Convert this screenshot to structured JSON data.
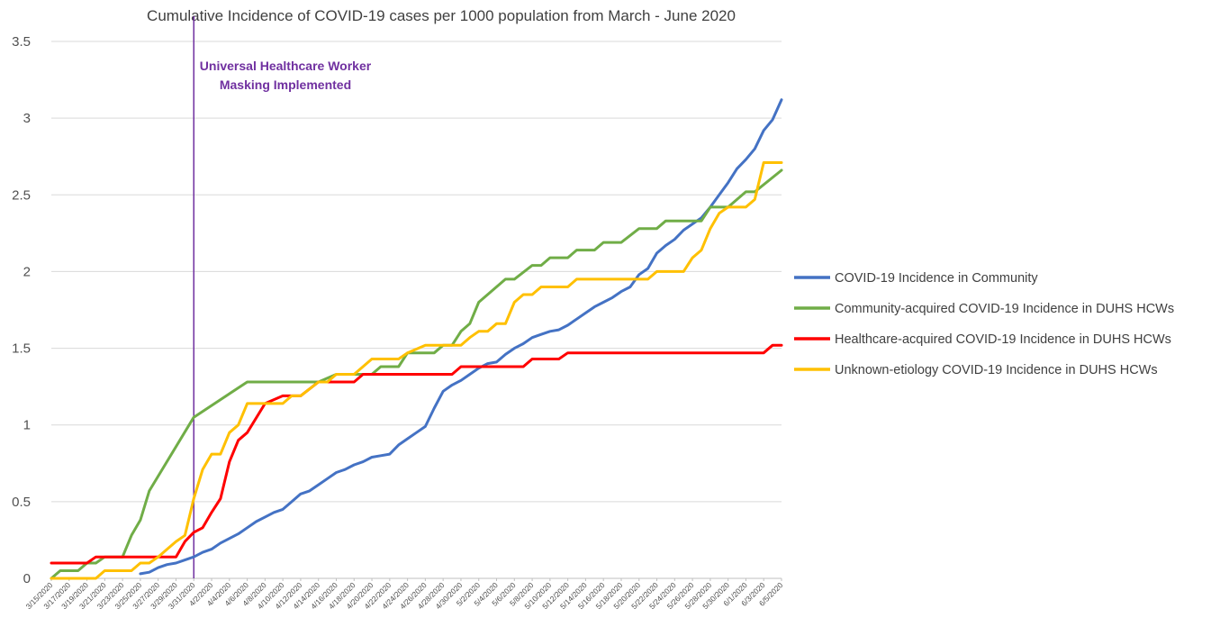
{
  "chart_data": {
    "type": "line",
    "title": "Cumulative Incidence of COVID-19 cases per 1000 population from March - June 2020",
    "xlabel": "",
    "ylabel": "",
    "ylim": [
      0,
      3.5
    ],
    "yticks": [
      "0",
      "0.5",
      "1",
      "1.5",
      "2",
      "2.5",
      "3",
      "3.5"
    ],
    "grid": "horizontal",
    "legend_position": "right",
    "x_start": "3/15/2020",
    "x_end": "6/5/2020",
    "x_tick_labels": [
      "3/15/2020",
      "3/17/2020",
      "3/19/2020",
      "3/21/2020",
      "3/23/2020",
      "3/25/2020",
      "3/27/2020",
      "3/29/2020",
      "3/31/2020",
      "4/2/2020",
      "4/4/2020",
      "4/6/2020",
      "4/8/2020",
      "4/10/2020",
      "4/12/2020",
      "4/14/2020",
      "4/16/2020",
      "4/18/2020",
      "4/20/2020",
      "4/22/2020",
      "4/24/2020",
      "4/26/2020",
      "4/28/2020",
      "4/30/2020",
      "5/2/2020",
      "5/4/2020",
      "5/6/2020",
      "5/8/2020",
      "5/10/2020",
      "5/12/2020",
      "5/14/2020",
      "5/16/2020",
      "5/18/2020",
      "5/20/2020",
      "5/22/2020",
      "5/24/2020",
      "5/26/2020",
      "5/28/2020",
      "5/30/2020",
      "6/1/2020",
      "6/3/2020",
      "6/5/2020"
    ],
    "annotation": {
      "date": "3/31/2020",
      "lines": [
        "Universal Healthcare Worker",
        "Masking Implemented"
      ],
      "color": "#7030a0"
    },
    "series": [
      {
        "name": "COVID-19 Incidence in Community",
        "color": "#4472c4",
        "points": [
          [
            "3/25/2020",
            0.03
          ],
          [
            "3/26/2020",
            0.04
          ],
          [
            "3/27/2020",
            0.07
          ],
          [
            "3/28/2020",
            0.09
          ],
          [
            "3/29/2020",
            0.1
          ],
          [
            "3/30/2020",
            0.12
          ],
          [
            "3/31/2020",
            0.14
          ],
          [
            "4/1/2020",
            0.17
          ],
          [
            "4/2/2020",
            0.19
          ],
          [
            "4/3/2020",
            0.23
          ],
          [
            "4/4/2020",
            0.26
          ],
          [
            "4/5/2020",
            0.29
          ],
          [
            "4/6/2020",
            0.33
          ],
          [
            "4/7/2020",
            0.37
          ],
          [
            "4/8/2020",
            0.4
          ],
          [
            "4/9/2020",
            0.43
          ],
          [
            "4/10/2020",
            0.45
          ],
          [
            "4/11/2020",
            0.5
          ],
          [
            "4/12/2020",
            0.55
          ],
          [
            "4/13/2020",
            0.57
          ],
          [
            "4/14/2020",
            0.61
          ],
          [
            "4/15/2020",
            0.65
          ],
          [
            "4/16/2020",
            0.69
          ],
          [
            "4/17/2020",
            0.71
          ],
          [
            "4/18/2020",
            0.74
          ],
          [
            "4/19/2020",
            0.76
          ],
          [
            "4/20/2020",
            0.79
          ],
          [
            "4/21/2020",
            0.8
          ],
          [
            "4/22/2020",
            0.81
          ],
          [
            "4/23/2020",
            0.87
          ],
          [
            "4/24/2020",
            0.91
          ],
          [
            "4/25/2020",
            0.95
          ],
          [
            "4/26/2020",
            0.99
          ],
          [
            "4/27/2020",
            1.11
          ],
          [
            "4/28/2020",
            1.22
          ],
          [
            "4/29/2020",
            1.26
          ],
          [
            "4/30/2020",
            1.29
          ],
          [
            "5/1/2020",
            1.33
          ],
          [
            "5/2/2020",
            1.37
          ],
          [
            "5/3/2020",
            1.4
          ],
          [
            "5/4/2020",
            1.41
          ],
          [
            "5/5/2020",
            1.46
          ],
          [
            "5/6/2020",
            1.5
          ],
          [
            "5/7/2020",
            1.53
          ],
          [
            "5/8/2020",
            1.57
          ],
          [
            "5/9/2020",
            1.59
          ],
          [
            "5/10/2020",
            1.61
          ],
          [
            "5/11/2020",
            1.62
          ],
          [
            "5/12/2020",
            1.65
          ],
          [
            "5/13/2020",
            1.69
          ],
          [
            "5/14/2020",
            1.73
          ],
          [
            "5/15/2020",
            1.77
          ],
          [
            "5/16/2020",
            1.8
          ],
          [
            "5/17/2020",
            1.83
          ],
          [
            "5/18/2020",
            1.87
          ],
          [
            "5/19/2020",
            1.9
          ],
          [
            "5/20/2020",
            1.98
          ],
          [
            "5/21/2020",
            2.02
          ],
          [
            "5/22/2020",
            2.12
          ],
          [
            "5/23/2020",
            2.17
          ],
          [
            "5/24/2020",
            2.21
          ],
          [
            "5/25/2020",
            2.27
          ],
          [
            "5/26/2020",
            2.31
          ],
          [
            "5/27/2020",
            2.35
          ],
          [
            "5/28/2020",
            2.42
          ],
          [
            "5/29/2020",
            2.5
          ],
          [
            "5/30/2020",
            2.58
          ],
          [
            "5/31/2020",
            2.67
          ],
          [
            "6/1/2020",
            2.73
          ],
          [
            "6/2/2020",
            2.8
          ],
          [
            "6/3/2020",
            2.92
          ],
          [
            "6/4/2020",
            2.99
          ],
          [
            "6/5/2020",
            3.12
          ]
        ]
      },
      {
        "name": "Community-acquired COVID-19 Incidence in DUHS HCWs",
        "color": "#70ad47",
        "points": [
          [
            "3/15/2020",
            0.0
          ],
          [
            "3/16/2020",
            0.05
          ],
          [
            "3/18/2020",
            0.05
          ],
          [
            "3/19/2020",
            0.1
          ],
          [
            "3/20/2020",
            0.1
          ],
          [
            "3/21/2020",
            0.14
          ],
          [
            "3/23/2020",
            0.14
          ],
          [
            "3/24/2020",
            0.28
          ],
          [
            "3/25/2020",
            0.38
          ],
          [
            "3/26/2020",
            0.57
          ],
          [
            "3/31/2020",
            1.05
          ],
          [
            "4/6/2020",
            1.28
          ],
          [
            "4/14/2020",
            1.28
          ],
          [
            "4/16/2020",
            1.33
          ],
          [
            "4/20/2020",
            1.33
          ],
          [
            "4/21/2020",
            1.38
          ],
          [
            "4/23/2020",
            1.38
          ],
          [
            "4/24/2020",
            1.47
          ],
          [
            "4/27/2020",
            1.47
          ],
          [
            "4/28/2020",
            1.52
          ],
          [
            "4/29/2020",
            1.52
          ],
          [
            "4/30/2020",
            1.61
          ],
          [
            "5/1/2020",
            1.66
          ],
          [
            "5/2/2020",
            1.8
          ],
          [
            "5/5/2020",
            1.95
          ],
          [
            "5/6/2020",
            1.95
          ],
          [
            "5/8/2020",
            2.04
          ],
          [
            "5/9/2020",
            2.04
          ],
          [
            "5/10/2020",
            2.09
          ],
          [
            "5/12/2020",
            2.09
          ],
          [
            "5/13/2020",
            2.14
          ],
          [
            "5/15/2020",
            2.14
          ],
          [
            "5/16/2020",
            2.19
          ],
          [
            "5/18/2020",
            2.19
          ],
          [
            "5/20/2020",
            2.28
          ],
          [
            "5/22/2020",
            2.28
          ],
          [
            "5/23/2020",
            2.33
          ],
          [
            "5/27/2020",
            2.33
          ],
          [
            "5/28/2020",
            2.42
          ],
          [
            "5/30/2020",
            2.42
          ],
          [
            "6/1/2020",
            2.52
          ],
          [
            "6/2/2020",
            2.52
          ],
          [
            "6/5/2020",
            2.66
          ]
        ]
      },
      {
        "name": "Healthcare-acquired COVID-19 Incidence in DUHS HCWs",
        "color": "#ff0000",
        "points": [
          [
            "3/15/2020",
            0.1
          ],
          [
            "3/19/2020",
            0.1
          ],
          [
            "3/20/2020",
            0.14
          ],
          [
            "3/29/2020",
            0.14
          ],
          [
            "3/30/2020",
            0.24
          ],
          [
            "3/31/2020",
            0.3
          ],
          [
            "4/1/2020",
            0.33
          ],
          [
            "4/2/2020",
            0.43
          ],
          [
            "4/3/2020",
            0.52
          ],
          [
            "4/4/2020",
            0.76
          ],
          [
            "4/5/2020",
            0.9
          ],
          [
            "4/6/2020",
            0.95
          ],
          [
            "4/8/2020",
            1.14
          ],
          [
            "4/10/2020",
            1.19
          ],
          [
            "4/12/2020",
            1.19
          ],
          [
            "4/14/2020",
            1.28
          ],
          [
            "4/18/2020",
            1.28
          ],
          [
            "4/19/2020",
            1.33
          ],
          [
            "4/29/2020",
            1.33
          ],
          [
            "4/30/2020",
            1.38
          ],
          [
            "5/7/2020",
            1.38
          ],
          [
            "5/8/2020",
            1.43
          ],
          [
            "5/11/2020",
            1.43
          ],
          [
            "5/12/2020",
            1.47
          ],
          [
            "6/3/2020",
            1.47
          ],
          [
            "6/4/2020",
            1.52
          ],
          [
            "6/5/2020",
            1.52
          ]
        ]
      },
      {
        "name": "Unknown-etiology COVID-19 Incidence in DUHS HCWs",
        "color": "#ffc000",
        "points": [
          [
            "3/15/2020",
            0.0
          ],
          [
            "3/20/2020",
            0.0
          ],
          [
            "3/21/2020",
            0.05
          ],
          [
            "3/24/2020",
            0.05
          ],
          [
            "3/25/2020",
            0.1
          ],
          [
            "3/26/2020",
            0.1
          ],
          [
            "3/27/2020",
            0.14
          ],
          [
            "3/28/2020",
            0.19
          ],
          [
            "3/29/2020",
            0.24
          ],
          [
            "3/30/2020",
            0.28
          ],
          [
            "3/31/2020",
            0.52
          ],
          [
            "4/1/2020",
            0.71
          ],
          [
            "4/2/2020",
            0.81
          ],
          [
            "4/3/2020",
            0.81
          ],
          [
            "4/4/2020",
            0.95
          ],
          [
            "4/5/2020",
            1.0
          ],
          [
            "4/6/2020",
            1.14
          ],
          [
            "4/10/2020",
            1.14
          ],
          [
            "4/11/2020",
            1.19
          ],
          [
            "4/12/2020",
            1.19
          ],
          [
            "4/14/2020",
            1.28
          ],
          [
            "4/15/2020",
            1.28
          ],
          [
            "4/16/2020",
            1.33
          ],
          [
            "4/18/2020",
            1.33
          ],
          [
            "4/20/2020",
            1.43
          ],
          [
            "4/23/2020",
            1.43
          ],
          [
            "4/24/2020",
            1.47
          ],
          [
            "4/26/2020",
            1.52
          ],
          [
            "4/30/2020",
            1.52
          ],
          [
            "5/1/2020",
            1.57
          ],
          [
            "5/2/2020",
            1.61
          ],
          [
            "5/3/2020",
            1.61
          ],
          [
            "5/4/2020",
            1.66
          ],
          [
            "5/5/2020",
            1.66
          ],
          [
            "5/6/2020",
            1.8
          ],
          [
            "5/7/2020",
            1.85
          ],
          [
            "5/8/2020",
            1.85
          ],
          [
            "5/9/2020",
            1.9
          ],
          [
            "5/12/2020",
            1.9
          ],
          [
            "5/13/2020",
            1.95
          ],
          [
            "5/21/2020",
            1.95
          ],
          [
            "5/22/2020",
            2.0
          ],
          [
            "5/25/2020",
            2.0
          ],
          [
            "5/26/2020",
            2.09
          ],
          [
            "5/27/2020",
            2.14
          ],
          [
            "5/28/2020",
            2.28
          ],
          [
            "5/29/2020",
            2.38
          ],
          [
            "5/30/2020",
            2.42
          ],
          [
            "6/1/2020",
            2.42
          ],
          [
            "6/2/2020",
            2.47
          ],
          [
            "6/3/2020",
            2.71
          ],
          [
            "6/5/2020",
            2.71
          ]
        ]
      }
    ]
  }
}
